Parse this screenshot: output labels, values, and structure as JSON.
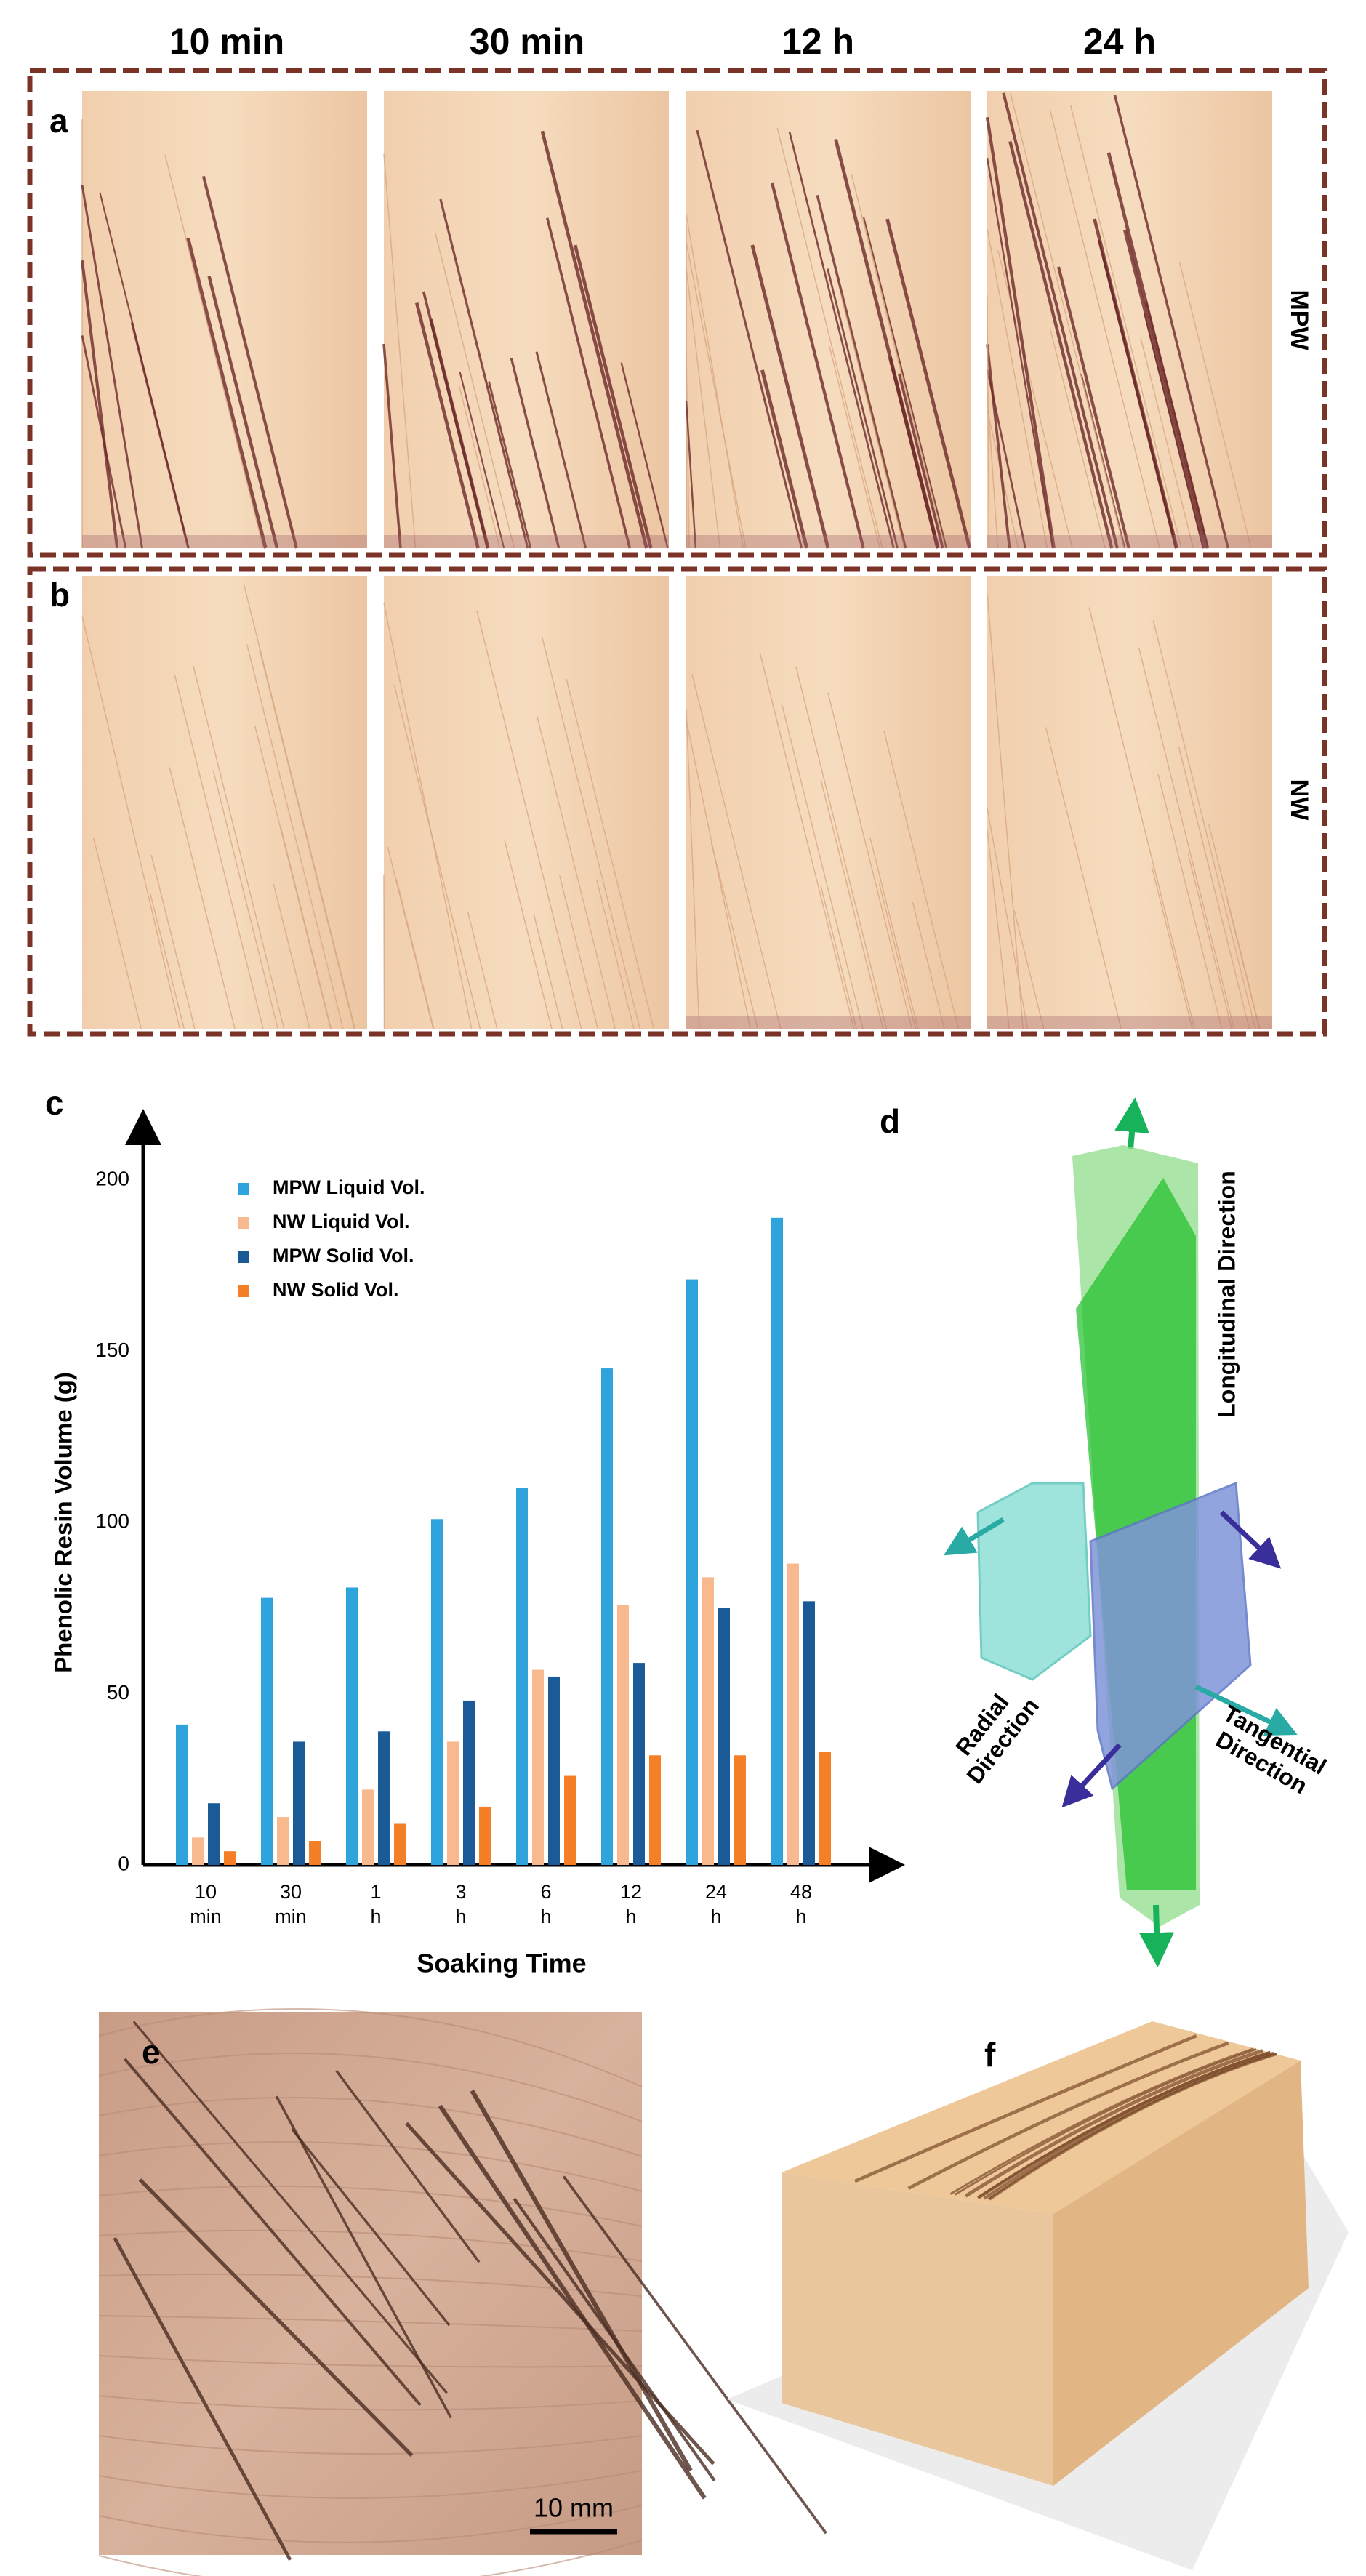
{
  "column_headers": [
    "10 min",
    "30 min",
    "12 h",
    "24 h"
  ],
  "panel_labels": {
    "a": "a",
    "b": "b",
    "c": "c",
    "d": "d",
    "e": "e",
    "f": "f"
  },
  "row_labels": {
    "a": "MPW",
    "b": "NW"
  },
  "chart_data": {
    "type": "bar",
    "y_label": "Phenolic Resin Volume (g)",
    "x_label": "Soaking Time",
    "categories": [
      "10 min",
      "30 min",
      "1 h",
      "3 h",
      "6 h",
      "12 h",
      "24 h",
      "48 h"
    ],
    "series": [
      {
        "name": "MPW Liquid Vol.",
        "color": "#2ea3dc",
        "values": [
          41,
          78,
          81,
          101,
          110,
          145,
          171,
          189
        ]
      },
      {
        "name": "NW Liquid Vol.",
        "color": "#f9b98e",
        "values": [
          8,
          14,
          22,
          36,
          57,
          76,
          84,
          88
        ]
      },
      {
        "name": "MPW Solid Vol.",
        "color": "#1a5a96",
        "values": [
          18,
          36,
          39,
          48,
          55,
          59,
          75,
          77
        ]
      },
      {
        "name": "NW Solid Vol.",
        "color": "#f47f27",
        "values": [
          4,
          7,
          12,
          17,
          26,
          32,
          32,
          33
        ]
      }
    ],
    "ylim": [
      0,
      200
    ],
    "yticks": [
      0,
      50,
      100,
      150,
      200
    ],
    "grid": false
  },
  "diagram": {
    "longitudinal": "Longitudinal Direction",
    "radial": "Radial Direction",
    "tangential": "Tangential Direction"
  },
  "scale_bar": "10 mm"
}
